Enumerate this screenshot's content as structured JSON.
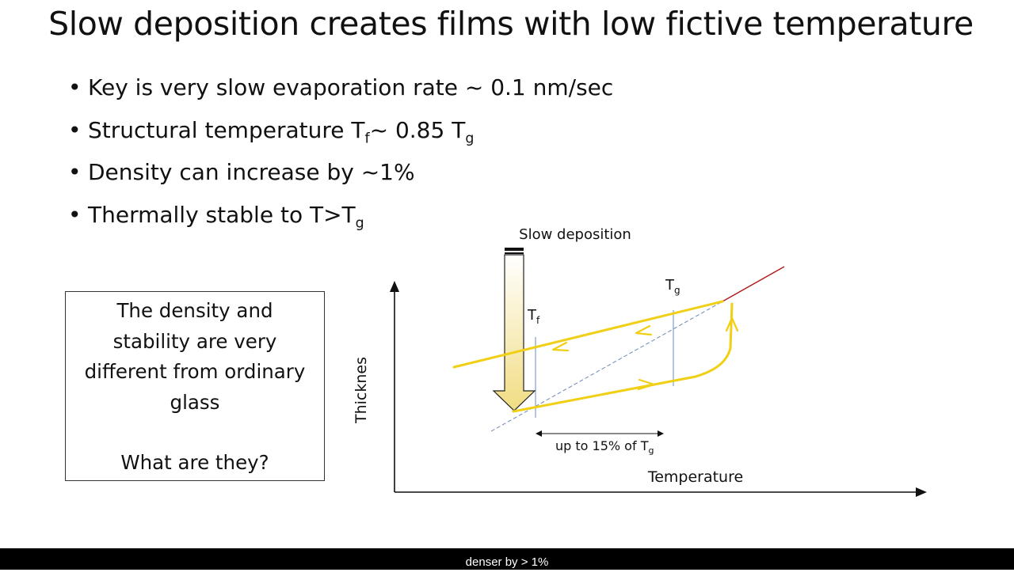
{
  "title": "Slow deposition creates films with low fictive temperature",
  "bullets": [
    {
      "text": "Key is very slow evaporation rate ~ 0.1 nm/sec"
    },
    {
      "pre": "Structural temperature T",
      "sub1": "f",
      "mid": "~ 0.85 T",
      "sub2": "g"
    },
    {
      "text": "Density can increase by ~1%"
    },
    {
      "pre": "Thermally stable to T>T",
      "sub1": "g"
    }
  ],
  "box": {
    "lines": [
      "The density and",
      "stability are very",
      "different from ordinary",
      "glass"
    ],
    "question": "What are they?"
  },
  "diagram": {
    "arrow_label": "Slow deposition",
    "y_axis_label": "Thicknes",
    "x_axis_label": "Temperature",
    "tf_label": "T",
    "tf_sub": "f",
    "tg_label": "T",
    "tg_sub": "g",
    "range_label": "up to 15% of T",
    "range_sub": "g",
    "colors": {
      "curve": "#f2d21b",
      "arrow_fill": "#f4e6a6",
      "line_red": "#b01919",
      "guide": "#7a9fd0"
    }
  },
  "caption": "denser by > 1%"
}
